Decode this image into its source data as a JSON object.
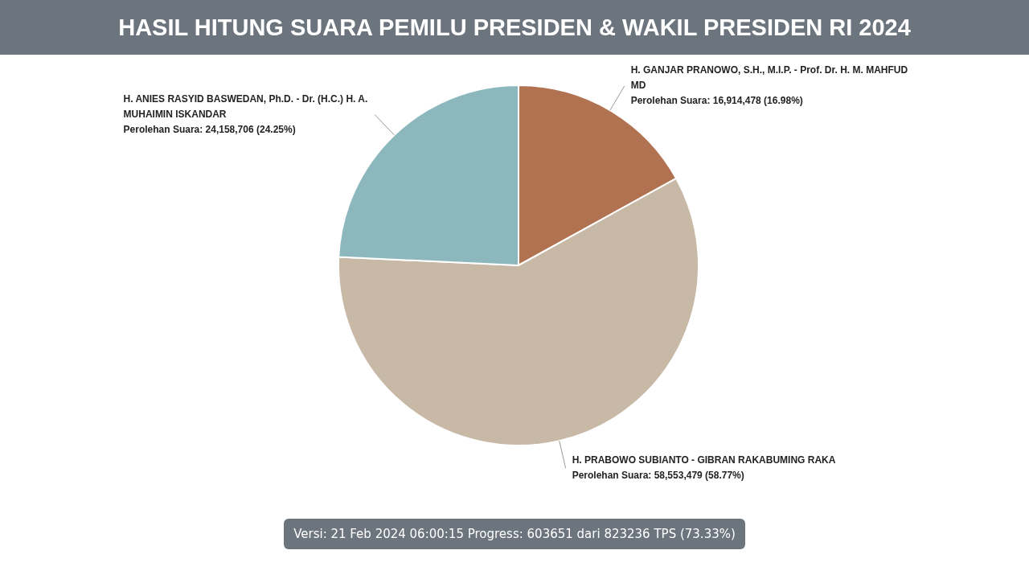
{
  "chart_data": {
    "type": "pie",
    "title": "HASIL HITUNG SUARA PEMILU PRESIDEN & WAKIL PRESIDEN RI 2024",
    "categories": [
      "H. GANJAR PRANOWO, S.H., M.I.P. - Prof. Dr. H. M. MAHFUD MD",
      "H. PRABOWO SUBIANTO - GIBRAN RAKABUMING RAKA",
      "H. ANIES RASYID BASWEDAN, Ph.D. - Dr. (H.C.) H. A. MUHAIMIN ISKANDAR"
    ],
    "values": [
      16914478,
      58553479,
      24158706
    ],
    "colors": [
      "#b07250",
      "#c8b8a6",
      "#8cb8bd"
    ],
    "value_labels": [
      "Perolehan Suara: 16,914,478 (16.98%)",
      "Perolehan Suara: 58,553,479 (58.77%)",
      "Perolehan Suara: 24,158,706 (24.25%)"
    ],
    "legend": false,
    "annotations": [
      "Versi: 21 Feb 2024 06:00:15 Progress: 603651 dari 823236 TPS (73.33%)"
    ]
  }
}
